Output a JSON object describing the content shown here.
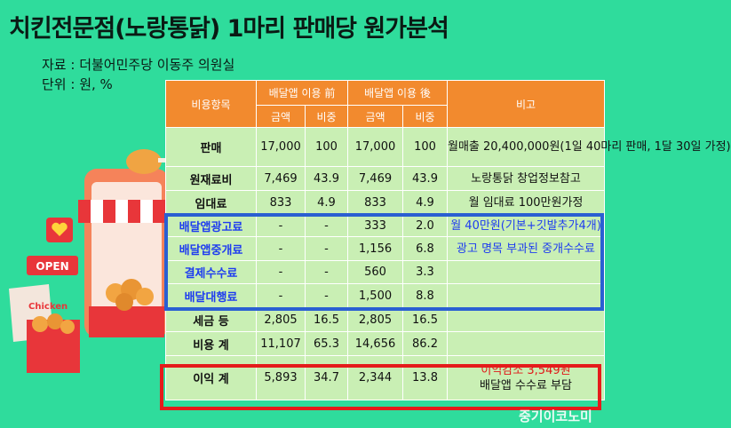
{
  "title": "치킨전문점(노랑통닭) 1마리 판매당 원가분석",
  "source": "자료 : 더불어민주당 이동주 의원실",
  "unit": "단위 : 원, %",
  "illustration": {
    "open_sign": "OPEN",
    "box_label": "Chicken"
  },
  "table": {
    "header": {
      "item": "비용항목",
      "before": "배달앱 이용 前",
      "after": "배달앱 이용 後",
      "note": "비고",
      "amount": "금액",
      "ratio": "비중"
    },
    "rows": [
      {
        "name": "판매",
        "b_amt": "17,000",
        "b_ratio": "100",
        "a_amt": "17,000",
        "a_ratio": "100",
        "note": "월매출  20,400,000원(1일 40마리 판매, 1달 30일 가정)"
      },
      {
        "name": "원재료비",
        "b_amt": "7,469",
        "b_ratio": "43.9",
        "a_amt": "7,469",
        "a_ratio": "43.9",
        "note": "노랑통닭 창업정보참고"
      },
      {
        "name": "임대료",
        "b_amt": "833",
        "b_ratio": "4.9",
        "a_amt": "833",
        "a_ratio": "4.9",
        "note": "월 임대료 100만원가정"
      },
      {
        "name": "배달앱광고료",
        "b_amt": "-",
        "b_ratio": "-",
        "a_amt": "333",
        "a_ratio": "2.0",
        "note": "월 40만원(기본+깃발추가4개)"
      },
      {
        "name": "배달앱중개료",
        "b_amt": "-",
        "b_ratio": "-",
        "a_amt": "1,156",
        "a_ratio": "6.8",
        "note": "광고 명목 부과된 중개수수료"
      },
      {
        "name": "결제수수료",
        "b_amt": "-",
        "b_ratio": "-",
        "a_amt": "560",
        "a_ratio": "3.3",
        "note": ""
      },
      {
        "name": "배달대행료",
        "b_amt": "-",
        "b_ratio": "-",
        "a_amt": "1,500",
        "a_ratio": "8.8",
        "note": ""
      },
      {
        "name": "세금 등",
        "b_amt": "2,805",
        "b_ratio": "16.5",
        "a_amt": "2,805",
        "a_ratio": "16.5",
        "note": ""
      },
      {
        "name": "비용 계",
        "b_amt": "11,107",
        "b_ratio": "65.3",
        "a_amt": "14,656",
        "a_ratio": "86.2",
        "note": ""
      },
      {
        "name": "이익 계",
        "b_amt": "5,893",
        "b_ratio": "34.7",
        "a_amt": "2,344",
        "a_ratio": "13.8",
        "note_red": "이익감소 3,549원",
        "note": "배달앱 수수료 부담"
      }
    ]
  },
  "watermark": "중기이코노미"
}
